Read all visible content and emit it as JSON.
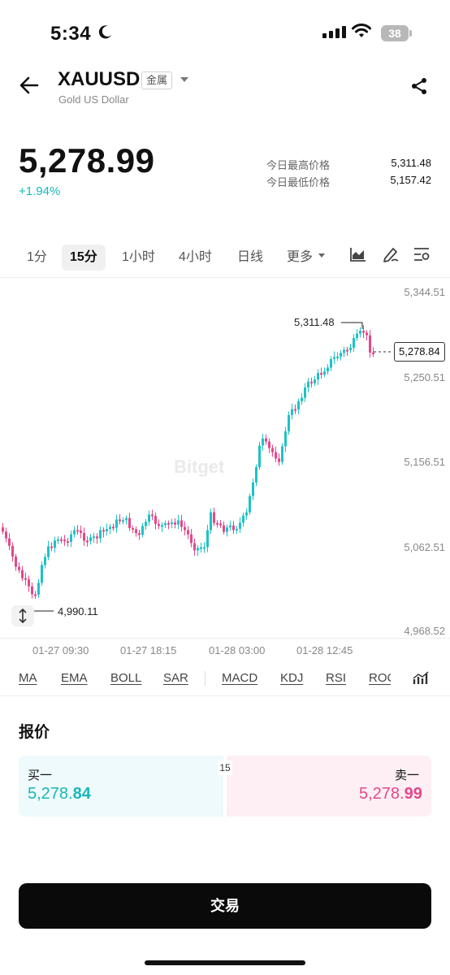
{
  "status_bar": {
    "time": "5:34",
    "battery": "38"
  },
  "header": {
    "symbol": "XAUUSD",
    "category_tag": "金属",
    "subtitle": "Gold US Dollar"
  },
  "price": {
    "last": "5,278.99",
    "change": "+1.94%"
  },
  "stats": [
    {
      "label": "今日最高价格",
      "value": "5,311.48"
    },
    {
      "label": "今日最低价格",
      "value": "5,157.42"
    }
  ],
  "timeframes": [
    "1分",
    "15分",
    "1小时",
    "4小时",
    "日线",
    "更多"
  ],
  "active_timeframe": "15分",
  "chart_data": {
    "type": "candlestick",
    "y_tick_labels": [
      "5,344.51",
      "5,250.51",
      "5,156.51",
      "5,062.51",
      "4,968.52"
    ],
    "x_tick_labels": [
      "01-27 09:30",
      "01-27 18:15",
      "01-28 03:00",
      "01-28 12:45"
    ],
    "ylim": [
      4968.52,
      5344.51
    ],
    "last_price_label": "5,278.84",
    "high_label": "5,311.48",
    "low_label": "4,990.11",
    "watermark": "Bitget",
    "colors": {
      "up": "#1ec2c6",
      "down": "#e6478a"
    }
  },
  "indicators": [
    "MA",
    "EMA",
    "BOLL",
    "SAR",
    "MACD",
    "KDJ",
    "RSI",
    "ROC"
  ],
  "quote": {
    "title": "报价",
    "spread": "15",
    "bid_label": "买一",
    "bid_main": "5,278.",
    "bid_tail": "84",
    "ask_label": "卖一",
    "ask_main": "5,278.",
    "ask_tail": "99"
  },
  "trade_button": "交易"
}
